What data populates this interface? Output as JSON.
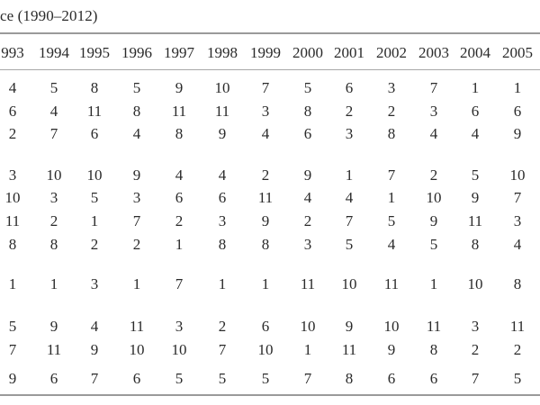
{
  "caption": "ce (1990–2012)",
  "columns": [
    "993",
    "1994",
    "1995",
    "1996",
    "1997",
    "1998",
    "1999",
    "2000",
    "2001",
    "2002",
    "2003",
    "2004",
    "2005"
  ],
  "rows": [
    [
      "4",
      "5",
      "8",
      "5",
      "9",
      "10",
      "7",
      "5",
      "6",
      "3",
      "7",
      "1",
      "1"
    ],
    [
      "6",
      "4",
      "11",
      "8",
      "11",
      "11",
      "3",
      "8",
      "2",
      "2",
      "3",
      "6",
      "6"
    ],
    [
      "2",
      "7",
      "6",
      "4",
      "8",
      "9",
      "4",
      "6",
      "3",
      "8",
      "4",
      "4",
      "9"
    ],
    [
      "3",
      "10",
      "10",
      "9",
      "4",
      "4",
      "2",
      "9",
      "1",
      "7",
      "2",
      "5",
      "10"
    ],
    [
      "10",
      "3",
      "5",
      "3",
      "6",
      "6",
      "11",
      "4",
      "4",
      "1",
      "10",
      "9",
      "7"
    ],
    [
      "11",
      "2",
      "1",
      "7",
      "2",
      "3",
      "9",
      "2",
      "7",
      "5",
      "9",
      "11",
      "3"
    ],
    [
      "8",
      "8",
      "2",
      "2",
      "1",
      "8",
      "8",
      "3",
      "5",
      "4",
      "5",
      "8",
      "4"
    ],
    [
      "1",
      "1",
      "3",
      "1",
      "7",
      "1",
      "1",
      "11",
      "10",
      "11",
      "1",
      "10",
      "8"
    ],
    [
      "5",
      "9",
      "4",
      "11",
      "3",
      "2",
      "6",
      "10",
      "9",
      "10",
      "11",
      "3",
      "11"
    ],
    [
      "7",
      "11",
      "9",
      "10",
      "10",
      "7",
      "10",
      "1",
      "11",
      "9",
      "8",
      "2",
      "2"
    ],
    [
      "9",
      "6",
      "7",
      "6",
      "5",
      "5",
      "5",
      "7",
      "8",
      "6",
      "6",
      "7",
      "5"
    ]
  ]
}
